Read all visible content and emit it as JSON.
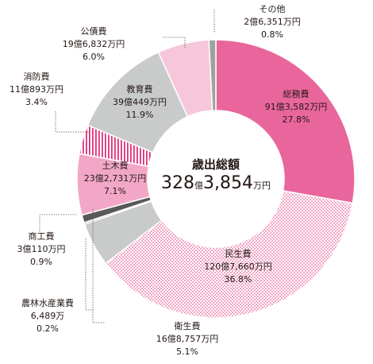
{
  "chart_data": {
    "type": "pie",
    "title": "歳出総額",
    "total": {
      "number_a": "328",
      "unit_a": "億",
      "number_b": "3,854",
      "unit_b": "万円"
    },
    "slices": [
      {
        "name": "総務費",
        "amount": "91億3,582万円",
        "percent_label": "27.8%",
        "value": 27.8,
        "color": "#e9669c",
        "pattern": "solid"
      },
      {
        "name": "民生費",
        "amount": "120億7,660万円",
        "percent_label": "36.8%",
        "value": 36.8,
        "color": "#e9669c",
        "pattern": "dots"
      },
      {
        "name": "衛生費",
        "amount": "16億8,757万円",
        "percent_label": "5.1%",
        "value": 5.1,
        "color": "#c9caca",
        "pattern": "solid"
      },
      {
        "name": "農林水産業費",
        "amount": "6,489万",
        "percent_label": "0.2%",
        "value": 0.2,
        "color": "#9fa0a0",
        "pattern": "solid"
      },
      {
        "name": "商工費",
        "amount": "3億110万円",
        "percent_label": "0.9%",
        "value": 0.9,
        "color": "#595757",
        "pattern": "solid"
      },
      {
        "name": "土木費",
        "amount": "23億2,731万円",
        "percent_label": "7.1%",
        "value": 7.1,
        "color": "#f2a7c7",
        "pattern": "solid"
      },
      {
        "name": "消防費",
        "amount": "11億893万円",
        "percent_label": "3.4%",
        "value": 3.4,
        "color": "#e0307b",
        "pattern": "stripes"
      },
      {
        "name": "教育費",
        "amount": "39億449万円",
        "percent_label": "11.9%",
        "value": 11.9,
        "color": "#c9caca",
        "pattern": "solid"
      },
      {
        "name": "公債費",
        "amount": "19億6,832万円",
        "percent_label": "6.0%",
        "value": 6.0,
        "color": "#f6c7da",
        "pattern": "solid"
      },
      {
        "name": "その他",
        "amount": "2億6,351万円",
        "percent_label": "0.8%",
        "value": 0.8,
        "color": "#9fa0a0",
        "pattern": "solid"
      }
    ],
    "start_direction": "top",
    "order": "clockwise"
  }
}
